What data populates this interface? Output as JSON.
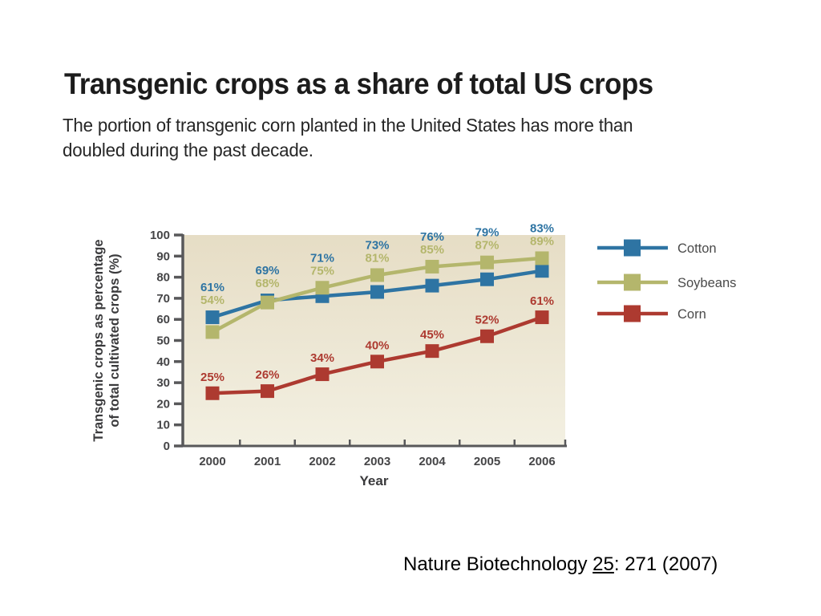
{
  "page": {
    "title": "Transgenic crops as a share of total US crops",
    "subtitle": "The portion of transgenic corn planted in the United States has more than\ndoubled during the past decade.",
    "citation": {
      "prefix": "Nature Biotechnology ",
      "volume": "25",
      "suffix": ": 271 (2007)"
    }
  },
  "colors": {
    "cotton": "#2e74a3",
    "soybeans": "#b4b66c",
    "corn": "#ad3a30",
    "axis": "#58585a",
    "tick_text": "#454547",
    "axis_label_text": "#3a3a3c",
    "legend_text": "#4a4a4a",
    "plot_bg_top": "#e6ddc5",
    "plot_bg_bottom": "#f3f0e2"
  },
  "chart_data": {
    "type": "line",
    "title": "",
    "xlabel": "Year",
    "ylabel": "Transgenic crops as percentage of total cultivated crops (%)",
    "ylabel_lines": [
      "Transgenic crops as percentage",
      "of total cultivated crops (%)"
    ],
    "categories": [
      "2000",
      "2001",
      "2002",
      "2003",
      "2004",
      "2005",
      "2006"
    ],
    "series": [
      {
        "name": "Cotton",
        "color": "#2e74a3",
        "values": [
          61,
          69,
          71,
          73,
          76,
          79,
          83
        ]
      },
      {
        "name": "Soybeans",
        "color": "#b4b66c",
        "values": [
          54,
          68,
          75,
          81,
          85,
          87,
          89
        ]
      },
      {
        "name": "Corn",
        "color": "#ad3a30",
        "values": [
          25,
          26,
          34,
          40,
          45,
          52,
          61
        ]
      }
    ],
    "ylim": [
      0,
      100
    ],
    "ytick_step": 10,
    "grid": false,
    "legend_position": "right",
    "data_labels": true,
    "data_label_suffix": "%",
    "marker": "square"
  }
}
